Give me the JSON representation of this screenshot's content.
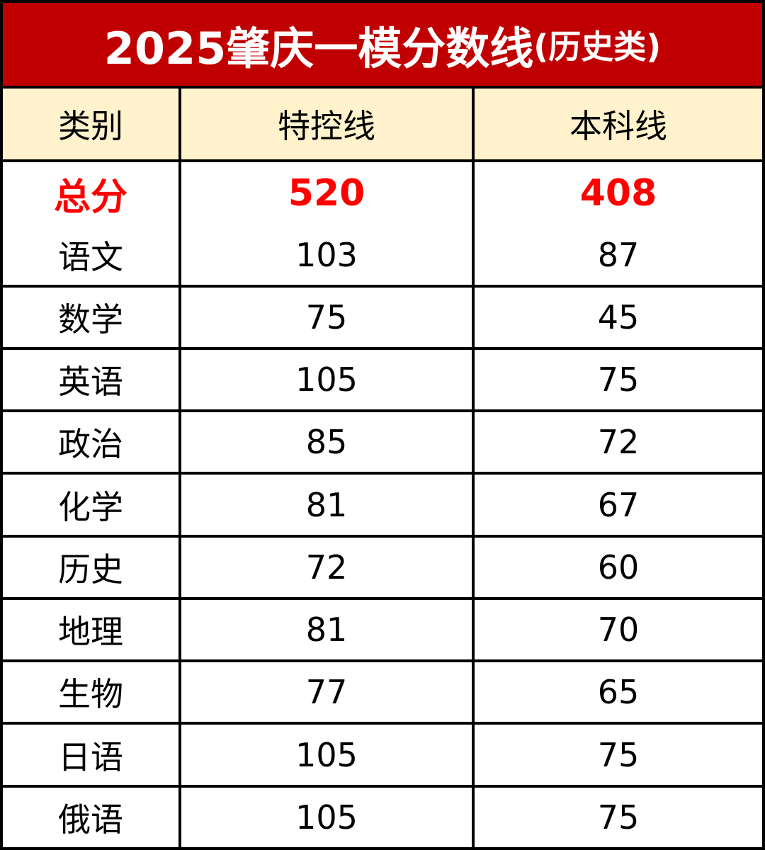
{
  "title": {
    "main": "2025肇庆一模分数线",
    "sub": "(历史类)"
  },
  "colors": {
    "title_bg": "#c00000",
    "header_bg": "#fff2cc",
    "highlight": "#ff0000"
  },
  "columns": [
    "类别",
    "特控线",
    "本科线"
  ],
  "total": {
    "label": "总分",
    "tekong": "520",
    "benke": "408"
  },
  "rows": [
    {
      "subject": "语文",
      "tekong": "103",
      "benke": "87"
    },
    {
      "subject": "数学",
      "tekong": "75",
      "benke": "45"
    },
    {
      "subject": "英语",
      "tekong": "105",
      "benke": "75"
    },
    {
      "subject": "政治",
      "tekong": "85",
      "benke": "72"
    },
    {
      "subject": "化学",
      "tekong": "81",
      "benke": "67"
    },
    {
      "subject": "历史",
      "tekong": "72",
      "benke": "60"
    },
    {
      "subject": "地理",
      "tekong": "81",
      "benke": "70"
    },
    {
      "subject": "生物",
      "tekong": "77",
      "benke": "65"
    },
    {
      "subject": "日语",
      "tekong": "105",
      "benke": "75"
    },
    {
      "subject": "俄语",
      "tekong": "105",
      "benke": "75"
    }
  ]
}
